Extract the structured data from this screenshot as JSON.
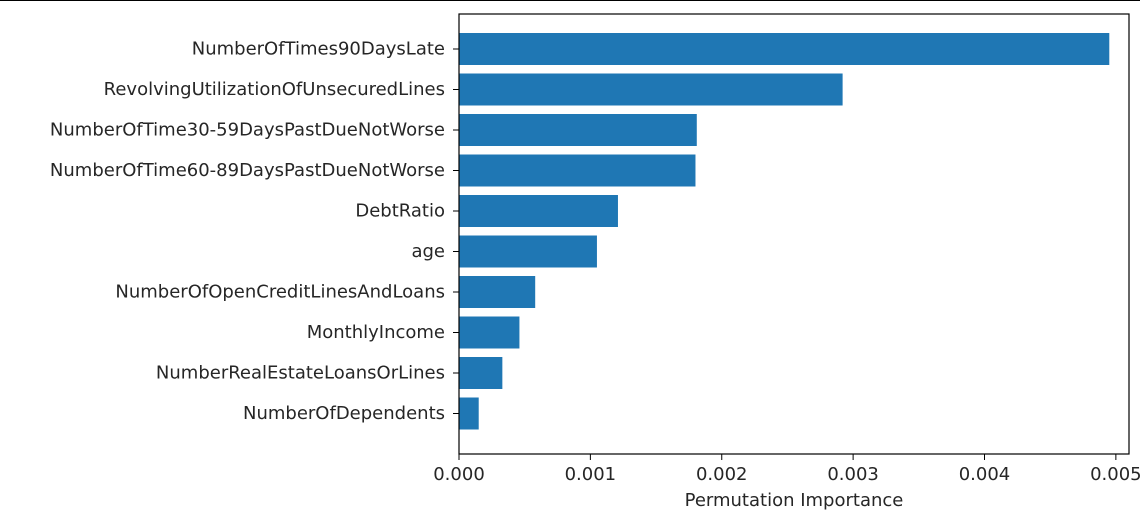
{
  "chart_data": {
    "type": "bar",
    "orientation": "horizontal",
    "categories": [
      "NumberOfTimes90DaysLate",
      "RevolvingUtilizationOfUnsecuredLines",
      "NumberOfTime30-59DaysPastDueNotWorse",
      "NumberOfTime60-89DaysPastDueNotWorse",
      "DebtRatio",
      "age",
      "NumberOfOpenCreditLinesAndLoans",
      "MonthlyIncome",
      "NumberRealEstateLoansOrLines",
      "NumberOfDependents"
    ],
    "values": [
      0.00495,
      0.00292,
      0.00181,
      0.0018,
      0.00121,
      0.00105,
      0.00058,
      0.00046,
      0.00033,
      0.00015
    ],
    "title": "",
    "xlabel": "Permutation Importance",
    "ylabel": "",
    "xlim": [
      0,
      0.0051
    ],
    "xticks": [
      "0.000",
      "0.001",
      "0.002",
      "0.003",
      "0.004",
      "0.005"
    ],
    "bar_color": "#1f77b4",
    "grid": false,
    "legend": "none"
  }
}
